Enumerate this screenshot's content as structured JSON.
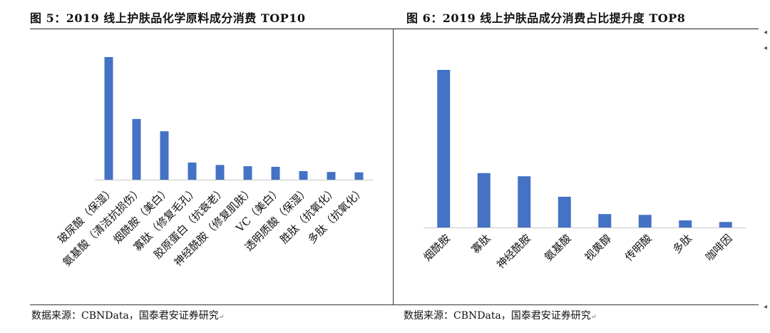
{
  "chart_data": [
    {
      "type": "bar",
      "title": "图 5：2019 线上护肤品化学原料成分消费 TOP10",
      "categories": [
        "玻尿酸（保湿）",
        "氨基酸（清洁抗损伤）",
        "烟酰胺（美白）",
        "寡肽（修复毛孔）",
        "胶原蛋白（抗衰老）",
        "神经酰胺（修复肌肤）",
        "VC（美白）",
        "透明质酸（保湿）",
        "胜肽（抗氧化）",
        "多肽（抗氧化）"
      ],
      "values": [
        100,
        49.5,
        39.5,
        14,
        12,
        11,
        10.5,
        7,
        6.3,
        6
      ],
      "ylim": [
        0,
        100
      ],
      "bar_color": "#4472c4",
      "source": "数据来源：CBNData，国泰君安证券研究"
    },
    {
      "type": "bar",
      "title": "图 6：2019 线上护肤品成分消费占比提升度 TOP8",
      "categories": [
        "烟酰胺",
        "寡肽",
        "神经酰胺",
        "氨基酸",
        "视黄醇",
        "传明酸",
        "多肽",
        "咖啡因"
      ],
      "values": [
        100,
        34.5,
        32.5,
        19.5,
        8.5,
        8,
        4.5,
        3.5
      ],
      "ylim": [
        0,
        100
      ],
      "bar_color": "#4472c4",
      "source": "数据来源：CBNData，国泰君安证券研究"
    }
  ]
}
